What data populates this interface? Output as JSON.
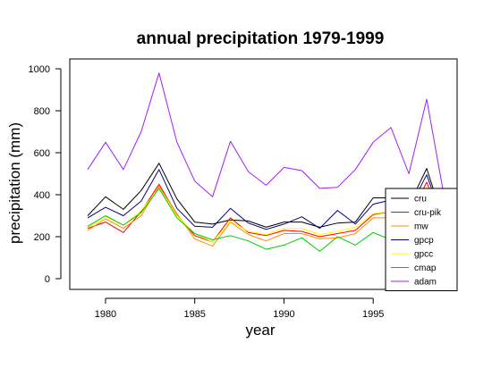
{
  "chart_data": {
    "type": "line",
    "title": "annual precipitation 1979-1999",
    "xlabel": "year",
    "ylabel": "precipitation (mm)",
    "xlim": [
      1979,
      1999
    ],
    "ylim": [
      0,
      1000
    ],
    "x_ticks": [
      "1980",
      "1985",
      "1990",
      "1995"
    ],
    "y_ticks": [
      "0",
      "200",
      "400",
      "600",
      "800",
      "1000"
    ],
    "legend_position": "bottom-right",
    "x": [
      1979,
      1980,
      1981,
      1982,
      1983,
      1984,
      1985,
      1986,
      1987,
      1988,
      1989,
      1990,
      1991,
      1992,
      1993,
      1994,
      1995,
      1996,
      1997,
      1998,
      1999
    ],
    "series": [
      {
        "name": "cru",
        "color": "#000000",
        "values": [
          300,
          390,
          330,
          420,
          550,
          380,
          270,
          260,
          280,
          275,
          245,
          270,
          270,
          245,
          265,
          270,
          385,
          385,
          350,
          525,
          260
        ]
      },
      {
        "name": "cru-pik",
        "color": "#ff0000",
        "values": [
          240,
          270,
          220,
          320,
          450,
          305,
          205,
          175,
          290,
          220,
          205,
          230,
          225,
          200,
          215,
          230,
          305,
          320,
          290,
          460,
          250
        ]
      },
      {
        "name": "mw",
        "color": "#ff8c00",
        "values": [
          230,
          285,
          240,
          300,
          440,
          310,
          190,
          155,
          270,
          210,
          180,
          215,
          215,
          190,
          195,
          215,
          290,
          290,
          265,
          415,
          240
        ]
      },
      {
        "name": "gpcp",
        "color": "#000080",
        "values": [
          290,
          340,
          300,
          370,
          520,
          335,
          250,
          245,
          335,
          265,
          235,
          260,
          295,
          240,
          325,
          260,
          355,
          375,
          330,
          495,
          255
        ]
      },
      {
        "name": "gpcc",
        "color": "#ffff00",
        "values": [
          245,
          295,
          255,
          325,
          430,
          300,
          215,
          175,
          275,
          225,
          210,
          240,
          240,
          210,
          225,
          245,
          310,
          320,
          300,
          440,
          250
        ]
      },
      {
        "name": "cmap",
        "color": "#00cc00",
        "values": [
          250,
          300,
          255,
          315,
          430,
          290,
          215,
          185,
          205,
          180,
          140,
          160,
          195,
          130,
          200,
          160,
          220,
          185,
          220,
          240,
          230
        ]
      },
      {
        "name": "adam",
        "color": "#a020f0",
        "values": [
          520,
          650,
          520,
          700,
          980,
          650,
          465,
          390,
          655,
          510,
          445,
          530,
          515,
          430,
          435,
          520,
          650,
          720,
          500,
          855,
          380
        ]
      }
    ]
  }
}
